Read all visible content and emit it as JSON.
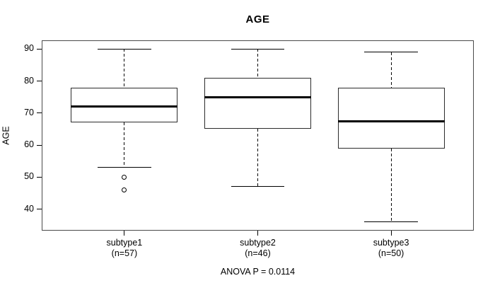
{
  "chart_data": {
    "type": "boxplot",
    "title": "AGE",
    "ylabel": "AGE",
    "xlabel": "",
    "annotation": "ANOVA P = 0.0114",
    "ylim": [
      33.3,
      92.7
    ],
    "yticks": [
      40,
      50,
      60,
      70,
      80,
      90
    ],
    "grid": false,
    "legend": null,
    "groups": [
      {
        "label": "subtype1",
        "count_label": "(n=57)",
        "whisker_low": 53,
        "q1": 67,
        "median": 72,
        "q3": 78,
        "whisker_high": 90,
        "outliers": [
          50,
          46
        ]
      },
      {
        "label": "subtype2",
        "count_label": "(n=46)",
        "whisker_low": 47,
        "q1": 65,
        "median": 75,
        "q3": 81,
        "whisker_high": 90,
        "outliers": []
      },
      {
        "label": "subtype3",
        "count_label": "(n=50)",
        "whisker_low": 36,
        "q1": 59,
        "median": 67.5,
        "q3": 78,
        "whisker_high": 89,
        "outliers": []
      }
    ],
    "colors": {
      "line": "#000000",
      "frame": "#4a4a4a",
      "background": "#ffffff"
    }
  }
}
